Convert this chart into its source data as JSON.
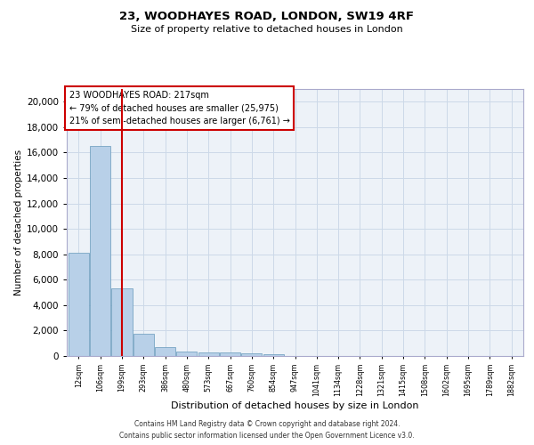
{
  "title_line1": "23, WOODHAYES ROAD, LONDON, SW19 4RF",
  "title_line2": "Size of property relative to detached houses in London",
  "xlabel": "Distribution of detached houses by size in London",
  "ylabel": "Number of detached properties",
  "bar_color": "#b8d0e8",
  "bar_edge_color": "#6699bb",
  "categories": [
    "12sqm",
    "106sqm",
    "199sqm",
    "293sqm",
    "386sqm",
    "480sqm",
    "573sqm",
    "667sqm",
    "760sqm",
    "854sqm",
    "947sqm",
    "1041sqm",
    "1134sqm",
    "1228sqm",
    "1321sqm",
    "1415sqm",
    "1508sqm",
    "1602sqm",
    "1695sqm",
    "1789sqm",
    "1882sqm"
  ],
  "values": [
    8100,
    16500,
    5300,
    1750,
    680,
    380,
    290,
    250,
    185,
    155,
    0,
    0,
    0,
    0,
    0,
    0,
    0,
    0,
    0,
    0,
    0
  ],
  "ylim": [
    0,
    21000
  ],
  "yticks": [
    0,
    2000,
    4000,
    6000,
    8000,
    10000,
    12000,
    14000,
    16000,
    18000,
    20000
  ],
  "annotation_text": "23 WOODHAYES ROAD: 217sqm\n← 79% of detached houses are smaller (25,975)\n21% of semi-detached houses are larger (6,761) →",
  "vline_x": 2.0,
  "vline_color": "#cc0000",
  "annotation_box_color": "#cc0000",
  "grid_color": "#ccd9e8",
  "background_color": "#edf2f8",
  "footer_line1": "Contains HM Land Registry data © Crown copyright and database right 2024.",
  "footer_line2": "Contains public sector information licensed under the Open Government Licence v3.0."
}
